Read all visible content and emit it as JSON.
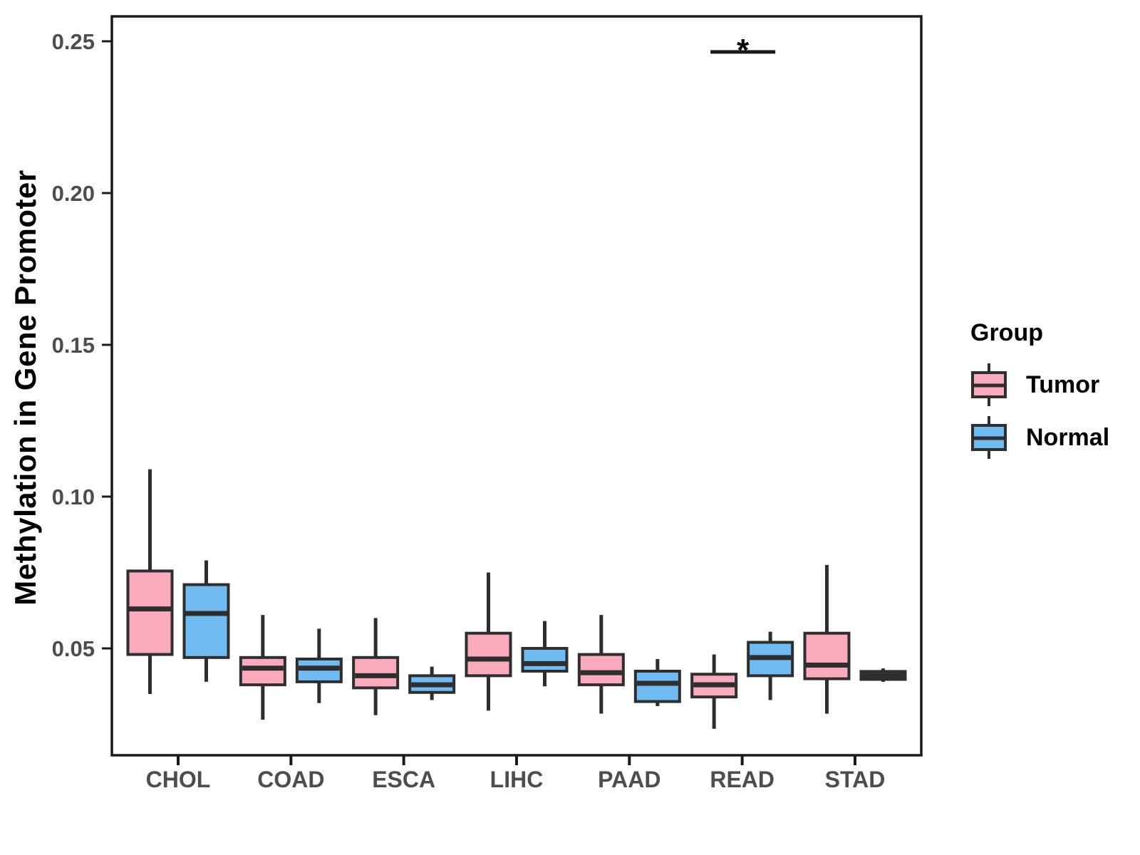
{
  "chart_data": {
    "type": "grouped_boxplot",
    "title": "",
    "xlabel": "",
    "ylabel": "Methylation in Gene Promoter",
    "categories": [
      "CHOL",
      "COAD",
      "ESCA",
      "LIHC",
      "PAAD",
      "READ",
      "STAD"
    ],
    "y_tick_labels": [
      "0.05",
      "0.10",
      "0.15",
      "0.20",
      "0.25"
    ],
    "y_tick_values": [
      0.05,
      0.1,
      0.15,
      0.2,
      0.25
    ],
    "ylim": [
      0.0148,
      0.2582
    ],
    "grid": false,
    "legend_position": "right",
    "series": [
      {
        "name": "Tumor",
        "fill": "#F9ABBB",
        "boxes": [
          {
            "category": "CHOL",
            "whisker_low": 0.035,
            "q1": 0.048,
            "median": 0.063,
            "q3": 0.0755,
            "whisker_high": 0.109
          },
          {
            "category": "COAD",
            "whisker_low": 0.0265,
            "q1": 0.038,
            "median": 0.0435,
            "q3": 0.047,
            "whisker_high": 0.061
          },
          {
            "category": "ESCA",
            "whisker_low": 0.028,
            "q1": 0.037,
            "median": 0.041,
            "q3": 0.047,
            "whisker_high": 0.06
          },
          {
            "category": "LIHC",
            "whisker_low": 0.0295,
            "q1": 0.041,
            "median": 0.0465,
            "q3": 0.055,
            "whisker_high": 0.075
          },
          {
            "category": "PAAD",
            "whisker_low": 0.0285,
            "q1": 0.038,
            "median": 0.042,
            "q3": 0.048,
            "whisker_high": 0.061
          },
          {
            "category": "READ",
            "whisker_low": 0.0235,
            "q1": 0.034,
            "median": 0.038,
            "q3": 0.0415,
            "whisker_high": 0.048
          },
          {
            "category": "STAD",
            "whisker_low": 0.0285,
            "q1": 0.04,
            "median": 0.0445,
            "q3": 0.055,
            "whisker_high": 0.0775
          }
        ]
      },
      {
        "name": "Normal",
        "fill": "#70BCF2",
        "boxes": [
          {
            "category": "CHOL",
            "whisker_low": 0.039,
            "q1": 0.047,
            "median": 0.0615,
            "q3": 0.071,
            "whisker_high": 0.079
          },
          {
            "category": "COAD",
            "whisker_low": 0.032,
            "q1": 0.039,
            "median": 0.0435,
            "q3": 0.0465,
            "whisker_high": 0.0565
          },
          {
            "category": "ESCA",
            "whisker_low": 0.033,
            "q1": 0.0355,
            "median": 0.038,
            "q3": 0.041,
            "whisker_high": 0.044
          },
          {
            "category": "LIHC",
            "whisker_low": 0.0375,
            "q1": 0.0425,
            "median": 0.045,
            "q3": 0.05,
            "whisker_high": 0.059
          },
          {
            "category": "PAAD",
            "whisker_low": 0.031,
            "q1": 0.0325,
            "median": 0.0385,
            "q3": 0.0425,
            "whisker_high": 0.0465
          },
          {
            "category": "READ",
            "whisker_low": 0.033,
            "q1": 0.041,
            "median": 0.047,
            "q3": 0.052,
            "whisker_high": 0.0555
          },
          {
            "category": "STAD",
            "whisker_low": 0.039,
            "q1": 0.0398,
            "median": 0.0411,
            "q3": 0.0424,
            "whisker_high": 0.0434
          }
        ]
      }
    ],
    "annotations": [
      {
        "type": "significance",
        "label": "*",
        "category": "READ",
        "y": 0.2465,
        "span": "Tumor-Normal"
      }
    ],
    "legend": {
      "title": "Group",
      "entries": [
        {
          "label": "Tumor",
          "fill": "#F9ABBB"
        },
        {
          "label": "Normal",
          "fill": "#70BCF2"
        }
      ]
    },
    "styles": {
      "box_stroke": "#2E2E2E",
      "axis_stroke": "#1A1A1A",
      "tick_label_color": "#4D4D4D",
      "title_color": "#000000",
      "panel_background": "#FFFFFF"
    }
  }
}
